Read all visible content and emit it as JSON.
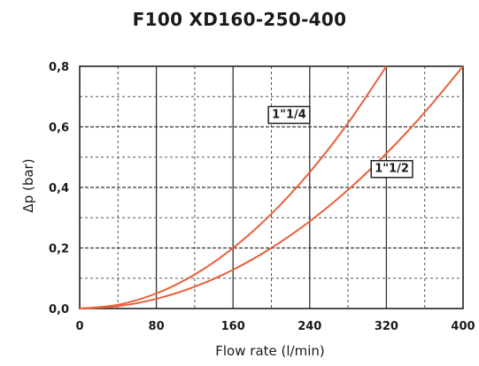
{
  "chart_data": {
    "type": "line",
    "title": "F100 XD160-250-400",
    "xlabel": "Flow rate (l/min)",
    "ylabel": "Δp (bar)",
    "xlim": [
      0,
      400
    ],
    "ylim": [
      0,
      0.8
    ],
    "x_ticks": [
      0,
      80,
      160,
      240,
      320,
      400
    ],
    "x_tick_labels": [
      "0",
      "80",
      "160",
      "240",
      "320",
      "400"
    ],
    "y_ticks": [
      0,
      0.2,
      0.4,
      0.6,
      0.8
    ],
    "y_tick_labels": [
      "0,0",
      "0,2",
      "0,4",
      "0,6",
      "0,8"
    ],
    "grid": true,
    "series_color": "#e8603a",
    "series": [
      {
        "name": "1\"1/4",
        "x": [
          0,
          40,
          80,
          120,
          160,
          200,
          240,
          280,
          320
        ],
        "values": [
          0,
          0.0125,
          0.05,
          0.1125,
          0.2,
          0.3125,
          0.45,
          0.6125,
          0.8
        ]
      },
      {
        "name": "1\"1/2",
        "x": [
          0,
          40,
          80,
          120,
          160,
          200,
          240,
          280,
          320,
          360,
          400
        ],
        "values": [
          0,
          0.008,
          0.032,
          0.072,
          0.128,
          0.2,
          0.288,
          0.392,
          0.512,
          0.648,
          0.8
        ]
      }
    ]
  }
}
